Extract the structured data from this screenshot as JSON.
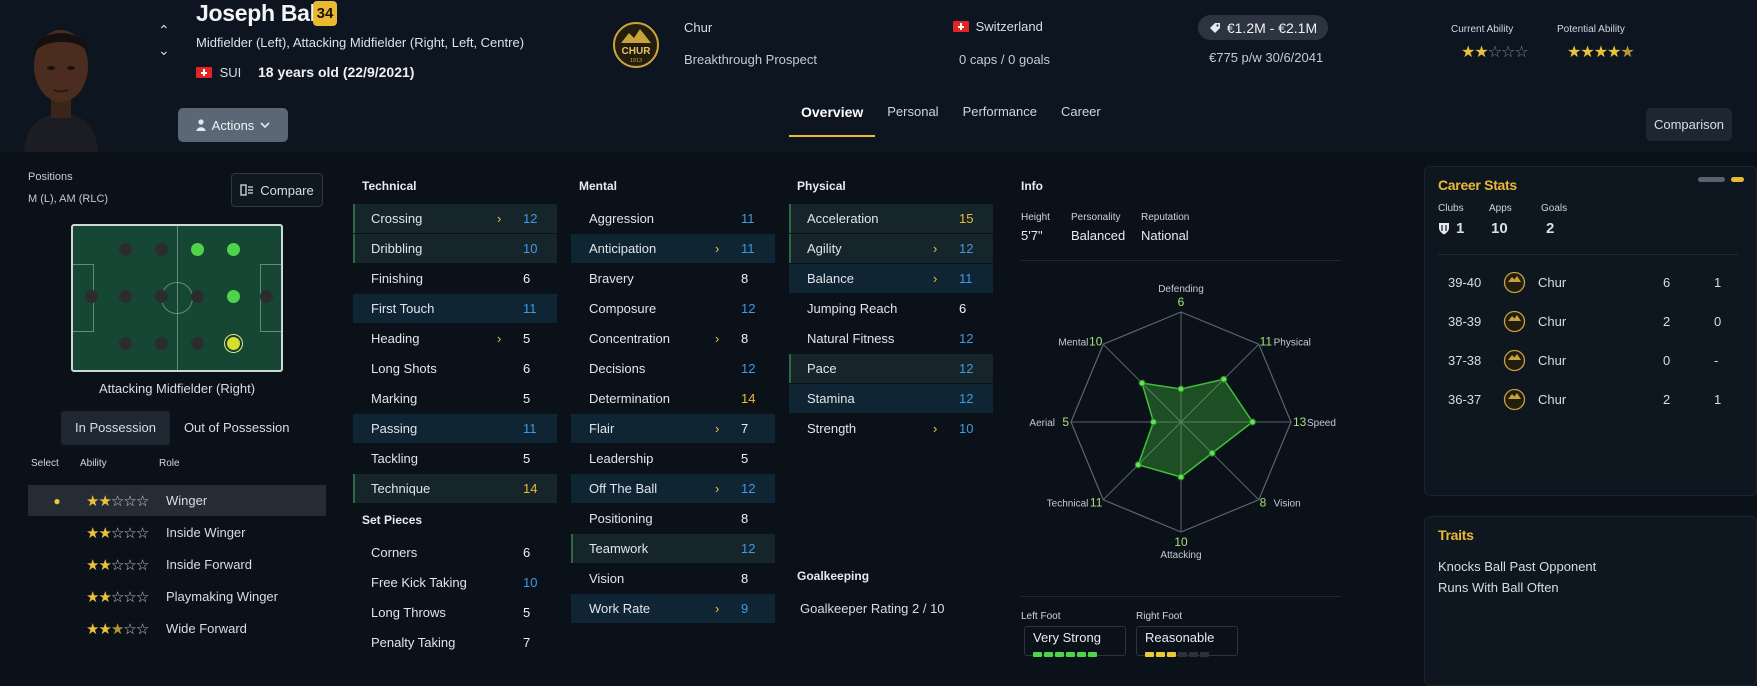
{
  "player": {
    "name": "Joseph Ballo",
    "ca_badge": "34",
    "positions_text": "Midfielder (Left), Attacking Midfielder (Right, Left, Centre)",
    "nation_code": "SUI",
    "age_text": "18 years old (22/9/2021)"
  },
  "header": {
    "actions_label": "Actions",
    "club_name": "Chur",
    "club_badge_text": "CHUR",
    "club_badge_year": "1913",
    "club_status": "Breakthrough Prospect",
    "country": "Switzerland",
    "caps": "0 caps / 0 goals",
    "value": "€1.2M - €2.1M",
    "wage": "€775 p/w 30/6/2041",
    "current_ability_label": "Current Ability",
    "potential_ability_label": "Potential Ability",
    "current_ability_stars": 2,
    "potential_ability_stars": 4.5,
    "comparison_label": "Comparison"
  },
  "tabs": [
    "Overview",
    "Personal",
    "Performance",
    "Career"
  ],
  "left": {
    "positions_label": "Positions",
    "positions_short": "M (L), AM (RLC)",
    "compare_label": "Compare",
    "selected_position": "Attacking Midfielder (Right)",
    "possession_tabs": [
      "In Possession",
      "Out of Possession"
    ],
    "role_headers": [
      "Select",
      "Ability",
      "Role"
    ],
    "roles": [
      {
        "name": "Winger",
        "stars": 2,
        "selected": true
      },
      {
        "name": "Inside Winger",
        "stars": 2,
        "selected": false
      },
      {
        "name": "Inside Forward",
        "stars": 2,
        "selected": false
      },
      {
        "name": "Playmaking Winger",
        "stars": 2,
        "selected": false
      },
      {
        "name": "Wide Forward",
        "stars": 2.5,
        "selected": false
      }
    ]
  },
  "attributes": {
    "technical_title": "Technical",
    "technical": [
      {
        "name": "Crossing",
        "value": "12",
        "arrow": true
      },
      {
        "name": "Dribbling",
        "value": "10",
        "arrow": false
      },
      {
        "name": "Finishing",
        "value": "6",
        "arrow": false
      },
      {
        "name": "First Touch",
        "value": "11",
        "arrow": false
      },
      {
        "name": "Heading",
        "value": "5",
        "arrow": true
      },
      {
        "name": "Long Shots",
        "value": "6",
        "arrow": false
      },
      {
        "name": "Marking",
        "value": "5",
        "arrow": false
      },
      {
        "name": "Passing",
        "value": "11",
        "arrow": false
      },
      {
        "name": "Tackling",
        "value": "5",
        "arrow": false
      },
      {
        "name": "Technique",
        "value": "14",
        "arrow": false
      }
    ],
    "set_pieces_title": "Set Pieces",
    "set_pieces": [
      {
        "name": "Corners",
        "value": "6",
        "arrow": false
      },
      {
        "name": "Free Kick Taking",
        "value": "10",
        "arrow": false
      },
      {
        "name": "Long Throws",
        "value": "5",
        "arrow": false
      },
      {
        "name": "Penalty Taking",
        "value": "7",
        "arrow": false
      }
    ],
    "mental_title": "Mental",
    "mental": [
      {
        "name": "Aggression",
        "value": "11",
        "arrow": false
      },
      {
        "name": "Anticipation",
        "value": "11",
        "arrow": true
      },
      {
        "name": "Bravery",
        "value": "8",
        "arrow": false
      },
      {
        "name": "Composure",
        "value": "12",
        "arrow": false
      },
      {
        "name": "Concentration",
        "value": "8",
        "arrow": true
      },
      {
        "name": "Decisions",
        "value": "12",
        "arrow": false
      },
      {
        "name": "Determination",
        "value": "14",
        "arrow": false
      },
      {
        "name": "Flair",
        "value": "7",
        "arrow": true
      },
      {
        "name": "Leadership",
        "value": "5",
        "arrow": false
      },
      {
        "name": "Off The Ball",
        "value": "12",
        "arrow": true
      },
      {
        "name": "Positioning",
        "value": "8",
        "arrow": false
      },
      {
        "name": "Teamwork",
        "value": "12",
        "arrow": false
      },
      {
        "name": "Vision",
        "value": "8",
        "arrow": false
      },
      {
        "name": "Work Rate",
        "value": "9",
        "arrow": true
      }
    ],
    "physical_title": "Physical",
    "physical": [
      {
        "name": "Acceleration",
        "value": "15",
        "arrow": false
      },
      {
        "name": "Agility",
        "value": "12",
        "arrow": true
      },
      {
        "name": "Balance",
        "value": "11",
        "arrow": true
      },
      {
        "name": "Jumping Reach",
        "value": "6",
        "arrow": false
      },
      {
        "name": "Natural Fitness",
        "value": "12",
        "arrow": false
      },
      {
        "name": "Pace",
        "value": "12",
        "arrow": false
      },
      {
        "name": "Stamina",
        "value": "12",
        "arrow": false
      },
      {
        "name": "Strength",
        "value": "10",
        "arrow": true
      }
    ],
    "goalkeeping_title": "Goalkeeping",
    "goalkeeper_rating": "Goalkeeper Rating 2 / 10"
  },
  "info": {
    "title": "Info",
    "height_label": "Height",
    "height": "5'7\"",
    "personality_label": "Personality",
    "personality": "Balanced",
    "reputation_label": "Reputation",
    "reputation": "National",
    "radar": [
      {
        "label": "Defending",
        "value": "6"
      },
      {
        "label": "Physical",
        "value": "11"
      },
      {
        "label": "Speed",
        "value": "13"
      },
      {
        "label": "Vision",
        "value": "8"
      },
      {
        "label": "Attacking",
        "value": "10"
      },
      {
        "label": "Technical",
        "value": "11"
      },
      {
        "label": "Aerial",
        "value": "5"
      },
      {
        "label": "Mental",
        "value": "10"
      }
    ],
    "left_foot_label": "Left Foot",
    "left_foot": "Very Strong",
    "left_foot_level": 6,
    "right_foot_label": "Right Foot",
    "right_foot": "Reasonable",
    "right_foot_level": 3
  },
  "career": {
    "title": "Career Stats",
    "clubs_label": "Clubs",
    "clubs": "1",
    "apps_label": "Apps",
    "apps": "10",
    "goals_label": "Goals",
    "goals": "2",
    "rows": [
      {
        "season": "39-40",
        "club": "Chur",
        "apps": "6",
        "goals": "1"
      },
      {
        "season": "38-39",
        "club": "Chur",
        "apps": "2",
        "goals": "0"
      },
      {
        "season": "37-38",
        "club": "Chur",
        "apps": "0",
        "goals": "-"
      },
      {
        "season": "36-37",
        "club": "Chur",
        "apps": "2",
        "goals": "1"
      }
    ]
  },
  "traits": {
    "title": "Traits",
    "items": [
      "Knocks Ball Past Opponent",
      "Runs With Ball Often"
    ]
  },
  "colors": {
    "gold": "#e9b934",
    "blue_value": "#3d9ae6",
    "white_value": "#f0f2f5",
    "radar_green": "#3fbf3a"
  }
}
